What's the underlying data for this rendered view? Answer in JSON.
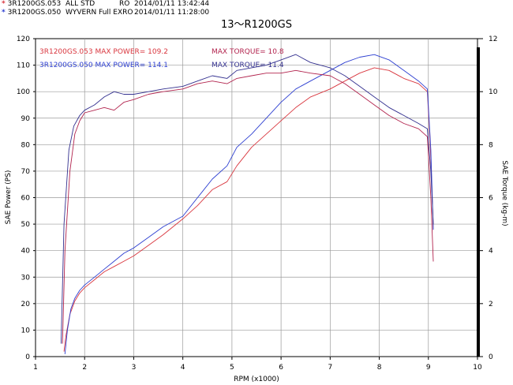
{
  "header": {
    "runs": [
      {
        "marker": "*",
        "marker_color": "#d9363e",
        "id": "3R1200GS.053",
        "desc": "ALL STD",
        "ro": "RO",
        "date": "2014/01/11 13:42:44"
      },
      {
        "marker": "*",
        "marker_color": "#2d3fd1",
        "id": "3R1200GS.050",
        "desc": "WYVERN Full EXRO",
        "ro": "",
        "date": "2014/01/11 11:28:00"
      }
    ]
  },
  "chart_data": {
    "type": "line",
    "title": "13～R1200GS",
    "xlabel": "RPM (x1000)",
    "ylabel": "SAE Power (PS)",
    "y2label": "SAE Torque (kg-m)",
    "xlim": [
      1,
      10
    ],
    "ylim": [
      0,
      120
    ],
    "y2lim": [
      0,
      12
    ],
    "xticks": [
      "1",
      "2",
      "3",
      "4",
      "5",
      "6",
      "7",
      "8",
      "9",
      "10"
    ],
    "yticks": [
      "0",
      "10",
      "20",
      "30",
      "40",
      "50",
      "60",
      "70",
      "80",
      "90",
      "100",
      "110",
      "120"
    ],
    "y2ticks": [
      "0",
      "2",
      "4",
      "6",
      "8",
      "10",
      "12"
    ],
    "grid": true,
    "annotations": [
      {
        "text": "3R1200GS.053  MAX POWER= 109.2",
        "color": "#d9363e"
      },
      {
        "text": "MAX TORQUE= 10.8",
        "color": "#b2244e"
      },
      {
        "text": "3R1200GS.050  MAX POWER= 114.1",
        "color": "#2d3fd1"
      },
      {
        "text": "MAX TORQUE= 11.4",
        "color": "#33308f"
      }
    ],
    "series": [
      {
        "name": "3R1200GS.053",
        "quantity": "power",
        "axis": "left",
        "color": "#d9363e",
        "x": [
          1.58,
          1.62,
          1.7,
          1.8,
          1.9,
          2.0,
          2.2,
          2.4,
          2.6,
          2.8,
          3.0,
          3.3,
          3.6,
          4.0,
          4.3,
          4.6,
          4.9,
          5.1,
          5.4,
          5.7,
          6.0,
          6.3,
          6.6,
          7.0,
          7.3,
          7.6,
          7.9,
          8.2,
          8.5,
          8.8,
          8.98,
          9.05,
          9.1
        ],
        "y": [
          2,
          8,
          16,
          21,
          24,
          26,
          29,
          32,
          34,
          36,
          38,
          42,
          46,
          52,
          57,
          63,
          66,
          72,
          79,
          84,
          89,
          94,
          98,
          101,
          104,
          107,
          109,
          108,
          105,
          103,
          100,
          75,
          48
        ]
      },
      {
        "name": "3R1200GS.050",
        "quantity": "power",
        "axis": "left",
        "color": "#2d3fd1",
        "x": [
          1.6,
          1.65,
          1.72,
          1.8,
          1.9,
          2.0,
          2.2,
          2.4,
          2.6,
          2.8,
          3.0,
          3.3,
          3.6,
          4.0,
          4.3,
          4.6,
          4.9,
          5.1,
          5.4,
          5.7,
          6.0,
          6.3,
          6.6,
          7.0,
          7.3,
          7.6,
          7.9,
          8.2,
          8.5,
          8.8,
          8.98,
          9.05,
          9.1
        ],
        "y": [
          1,
          10,
          18,
          22,
          25,
          27,
          30,
          33,
          36,
          39,
          41,
          45,
          49,
          53,
          60,
          67,
          72,
          79,
          84,
          90,
          96,
          101,
          104,
          108,
          111,
          113,
          114,
          112,
          108,
          104,
          101,
          78,
          48
        ]
      },
      {
        "name": "3R1200GS.053",
        "quantity": "torque",
        "axis": "right",
        "color": "#b2244e",
        "x": [
          1.55,
          1.6,
          1.7,
          1.8,
          1.9,
          2.0,
          2.2,
          2.4,
          2.6,
          2.8,
          3.0,
          3.3,
          3.6,
          4.0,
          4.3,
          4.6,
          4.9,
          5.1,
          5.4,
          5.7,
          6.0,
          6.3,
          6.6,
          7.0,
          7.3,
          7.6,
          7.9,
          8.2,
          8.5,
          8.8,
          8.98,
          9.05,
          9.1
        ],
        "y": [
          0.5,
          4.0,
          7.0,
          8.4,
          8.9,
          9.2,
          9.3,
          9.4,
          9.3,
          9.6,
          9.7,
          9.9,
          10.0,
          10.1,
          10.3,
          10.4,
          10.3,
          10.5,
          10.6,
          10.7,
          10.7,
          10.8,
          10.7,
          10.6,
          10.3,
          9.9,
          9.5,
          9.1,
          8.8,
          8.6,
          8.3,
          6.0,
          3.6
        ]
      },
      {
        "name": "3R1200GS.050",
        "quantity": "torque",
        "axis": "right",
        "color": "#33308f",
        "x": [
          1.52,
          1.58,
          1.68,
          1.78,
          1.9,
          2.0,
          2.2,
          2.4,
          2.6,
          2.8,
          3.0,
          3.3,
          3.6,
          4.0,
          4.3,
          4.6,
          4.9,
          5.1,
          5.4,
          5.7,
          6.0,
          6.3,
          6.6,
          7.0,
          7.3,
          7.6,
          7.9,
          8.2,
          8.5,
          8.8,
          8.98,
          9.05,
          9.1
        ],
        "y": [
          0.5,
          5.0,
          7.8,
          8.7,
          9.1,
          9.3,
          9.5,
          9.8,
          10.0,
          9.9,
          9.9,
          10.0,
          10.1,
          10.2,
          10.4,
          10.6,
          10.5,
          10.8,
          10.9,
          11.0,
          11.2,
          11.4,
          11.1,
          10.9,
          10.6,
          10.2,
          9.8,
          9.4,
          9.1,
          8.8,
          8.6,
          7.0,
          5.0
        ]
      }
    ]
  }
}
